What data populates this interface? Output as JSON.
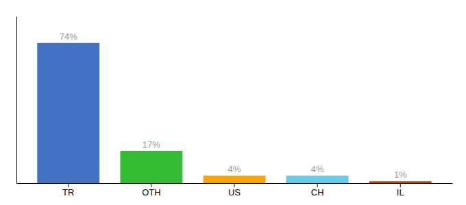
{
  "chart_data": {
    "type": "bar",
    "categories": [
      "TR",
      "OTH",
      "US",
      "CH",
      "IL"
    ],
    "values": [
      74,
      17,
      4,
      4,
      1
    ],
    "value_labels": [
      "74%",
      "17%",
      "4%",
      "4%",
      "1%"
    ],
    "colors": [
      "#4472c4",
      "#33bb33",
      "#ffa500",
      "#66ccee",
      "#cc4400"
    ],
    "ylim": [
      0,
      88
    ],
    "data_labels": true,
    "tick_labels": "x"
  }
}
